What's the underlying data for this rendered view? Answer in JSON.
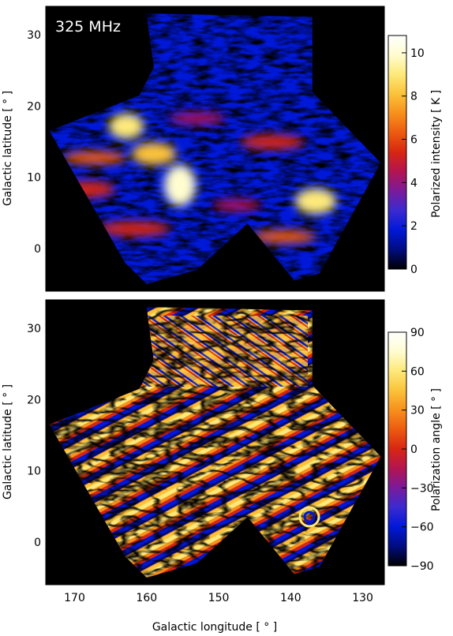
{
  "chart_data": [
    {
      "type": "heatmap",
      "title": "325 MHz",
      "xlabel": "",
      "ylabel": "Galactic latitude [ ° ]",
      "xlim": [
        174,
        127
      ],
      "ylim": [
        -6,
        34
      ],
      "yticks": [
        0,
        10,
        20,
        30
      ],
      "colorbar": {
        "label": "Polarized intensity [ K ]",
        "range": [
          0,
          10.8
        ],
        "ticks": [
          0,
          2,
          4,
          6,
          8,
          10
        ]
      },
      "colormap": [
        "#000000",
        "#000c80",
        "#0018d8",
        "#3a2ad0",
        "#7a1a9c",
        "#b31452",
        "#d72612",
        "#ec5a10",
        "#f7901c",
        "#fbc23a",
        "#fde97a",
        "#fffcd0",
        "#ffffff"
      ]
    },
    {
      "type": "heatmap",
      "title": "",
      "xlabel": "Galactic longitude [ ° ]",
      "ylabel": "Galactic latitude [ ° ]",
      "xlim": [
        174,
        127
      ],
      "ylim": [
        -6,
        34
      ],
      "xticks": [
        170,
        160,
        150,
        140,
        130
      ],
      "yticks": [
        0,
        10,
        20,
        30
      ],
      "colorbar": {
        "label": "Polarization angle [ ° ]",
        "range": [
          -90,
          90
        ],
        "ticks": [
          -90,
          -60,
          -30,
          0,
          30,
          60,
          90
        ]
      },
      "colormap": [
        "#000000",
        "#000c80",
        "#0018d8",
        "#3a2ad0",
        "#7a1a9c",
        "#b31452",
        "#d72612",
        "#ec5a10",
        "#f7901c",
        "#fbc23a",
        "#fde97a",
        "#fffcd0",
        "#ffffff"
      ]
    }
  ]
}
